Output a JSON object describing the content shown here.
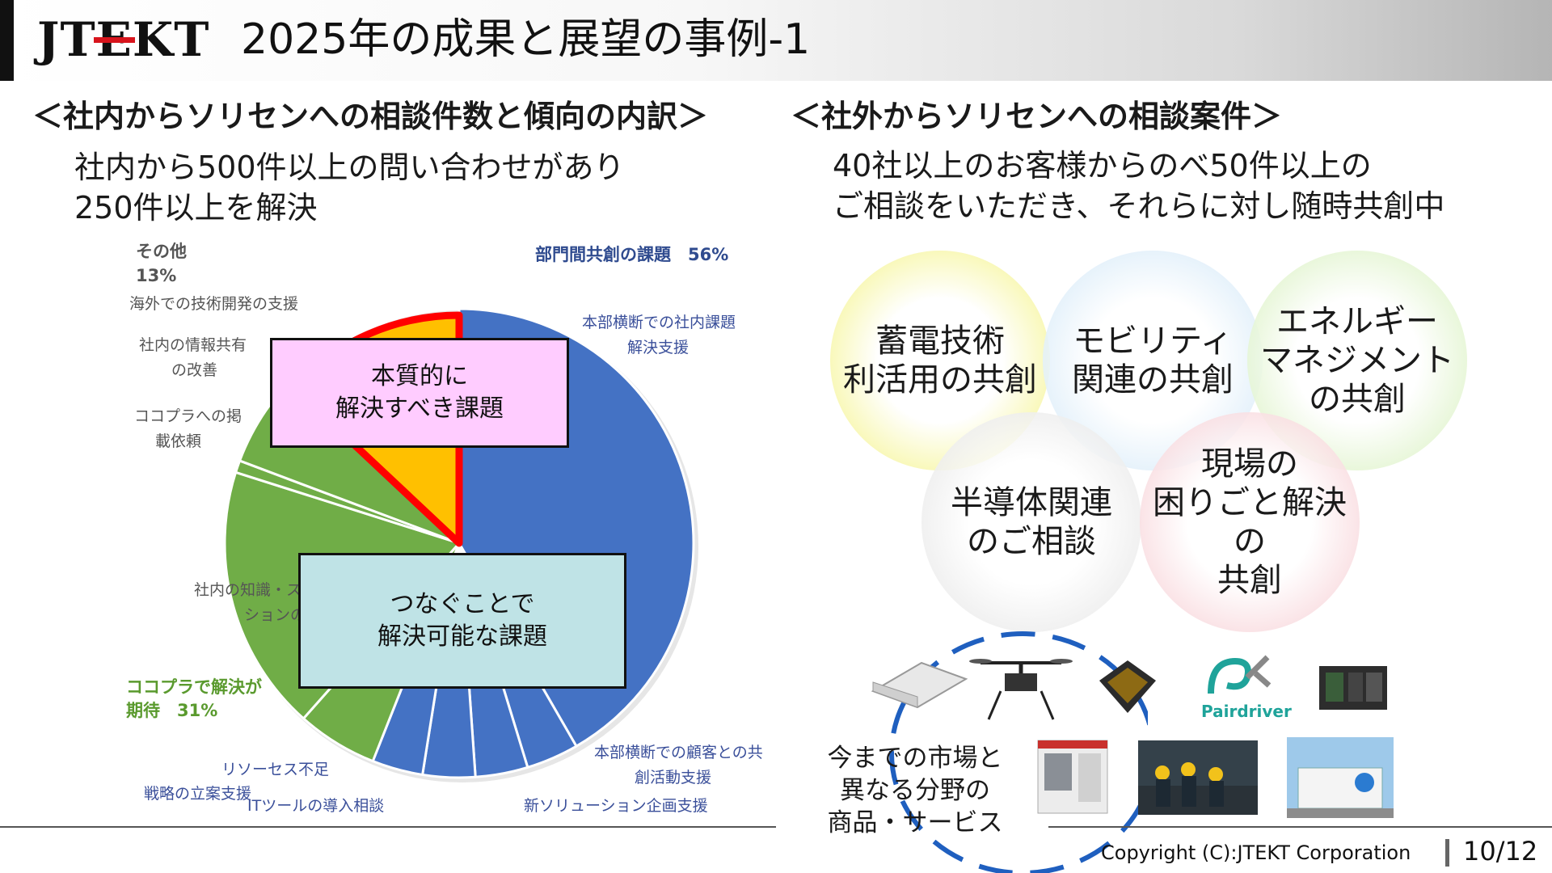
{
  "header": {
    "logo_text": "JTEKT",
    "title": "2025年の成果と展望の事例-1"
  },
  "left": {
    "heading": "＜社内からソリセンへの相談件数と傾向の内訳＞",
    "lead_line1": "社内から500件以上の問い合わせがあり",
    "lead_line2": "250件以上を解決",
    "pie": {
      "pct_other_label": "その他",
      "pct_other_value": "13%",
      "pct_dept": "部門間共創の課題　56%",
      "pct_kokopura_line1": "ココプラで解決が",
      "pct_kokopura_line2": "期待　31%",
      "labels": {
        "overseas": "海外での技術開発の支援",
        "info_share_1": "社内の情報共有",
        "info_share_2": "の改善",
        "kokopura_post_1": "ココプラへの掲",
        "kokopura_post_2": "載依頼",
        "knowledge_1": "社内の知識・ス",
        "knowledge_2": "ションの共",
        "hq_internal_1": "本部横断での社内課題",
        "hq_internal_2": "解決支援",
        "resource": "リソーセス不足",
        "strategy": "戦略の立案支援",
        "it_tools": "ITツールの導入相談",
        "hq_customer_1": "本部横断での顧客との共",
        "hq_customer_2": "創活動支援",
        "new_solution": "新ソリューション企画支援"
      },
      "callout_essential": "本質的に\n解決すべき課題",
      "callout_connect": "つなぐことで\n解決可能な課題"
    }
  },
  "chart_data": {
    "type": "pie",
    "series_groups": [
      {
        "name": "部門間共創の課題",
        "value": 56
      },
      {
        "name": "ココプラで解決が期待",
        "value": 31
      },
      {
        "name": "その他",
        "value": 13
      }
    ],
    "colors": {
      "dept": "#4472c4",
      "kokopura": "#70ad47",
      "other": "#ffc000",
      "highlight": "#ff0000"
    }
  },
  "right": {
    "heading": "＜社外からソリセンへの相談案件＞",
    "lead_line1": "40社以上のお客様からのべ50件以上の",
    "lead_line2": "ご相談をいただき、それらに対し随時共創中",
    "circles": [
      {
        "text": "蓄電技術\n利活用の共創",
        "color": "#f3f27a"
      },
      {
        "text": "モビリティ\n関連の共創",
        "color": "#cfe6f7"
      },
      {
        "text": "エネルギー\nマネジメント\nの共創",
        "color": "#d4efb8"
      },
      {
        "text": "半導体関連\nのご相談",
        "color": "#e3e3e3"
      },
      {
        "text": "現場の\n困りごと解決の\n共創",
        "color": "#f6c9cf"
      }
    ],
    "products_caption": "今までの市場と\n異なる分野の\n商品・サービス",
    "pairdriver_label": "Pairdriver"
  },
  "footer": {
    "copyright": "Copyright (C):JTEKT Corporation",
    "page_number": "10/12"
  }
}
